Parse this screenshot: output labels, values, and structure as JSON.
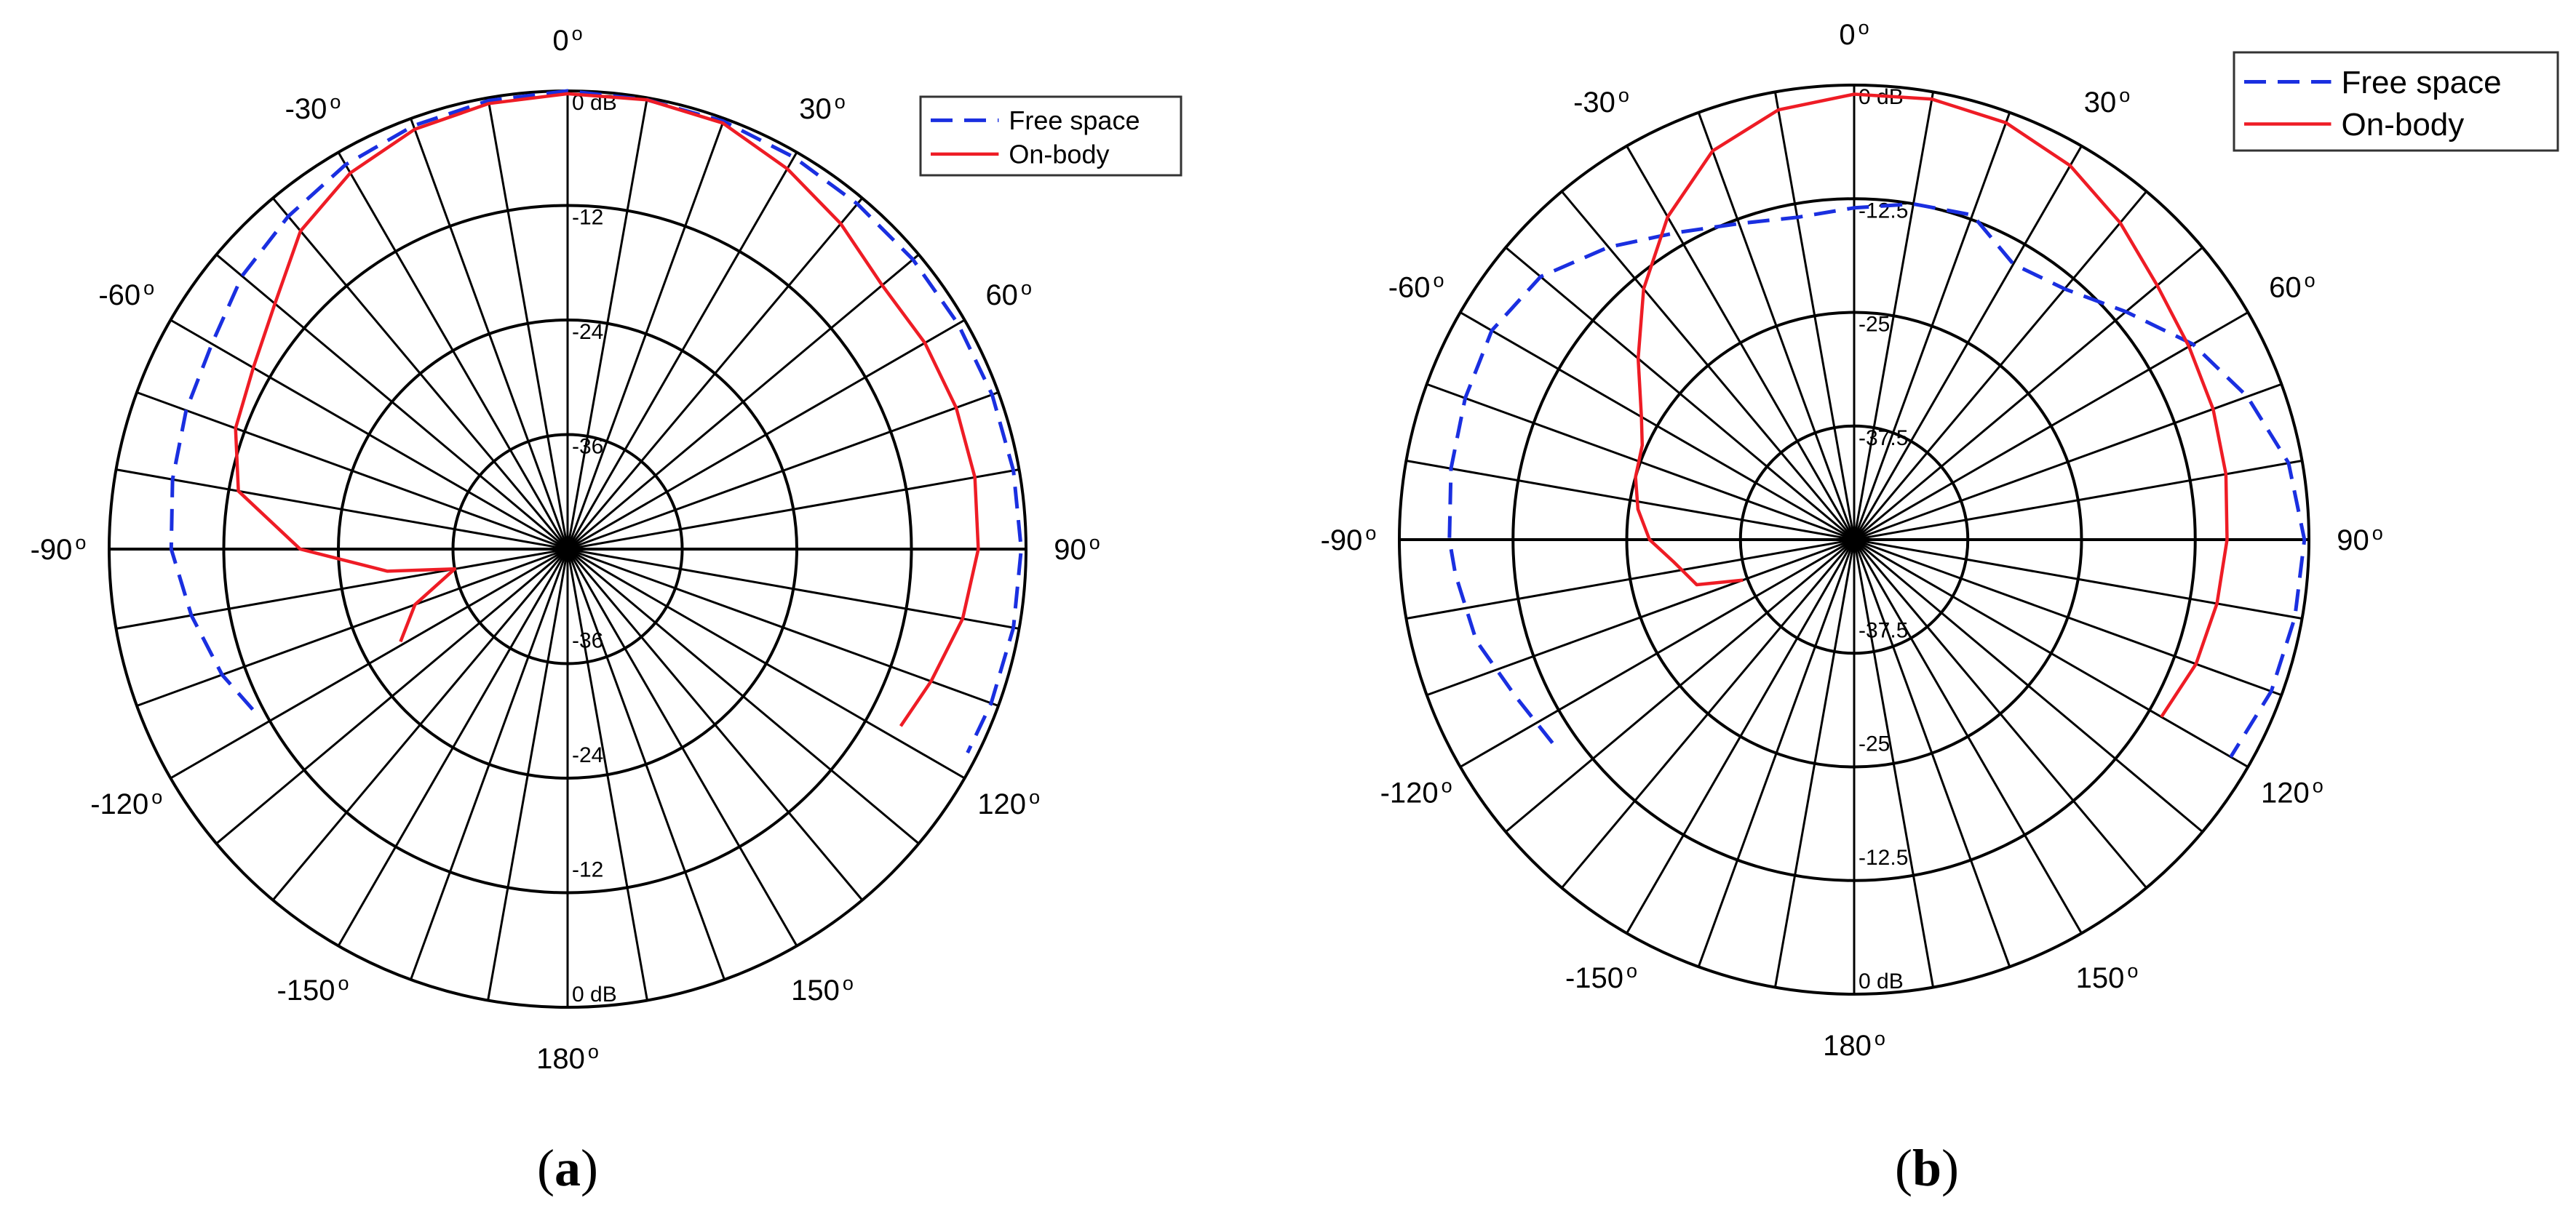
{
  "chart_data": [
    {
      "type": "polar-line",
      "panel_label": "a",
      "angle_labels": [
        {
          "angle": 0,
          "text": "0"
        },
        {
          "angle": 30,
          "text": "30"
        },
        {
          "angle": 60,
          "text": "60"
        },
        {
          "angle": 90,
          "text": "90"
        },
        {
          "angle": 120,
          "text": "120"
        },
        {
          "angle": 150,
          "text": "150"
        },
        {
          "angle": 180,
          "text": "180"
        },
        {
          "angle": -150,
          "text": "-150"
        },
        {
          "angle": -120,
          "text": "-120"
        },
        {
          "angle": -90,
          "text": "-90"
        },
        {
          "angle": -60,
          "text": "-60"
        },
        {
          "angle": -30,
          "text": "-30"
        }
      ],
      "degree_symbol": "o",
      "radial_unit": "dB",
      "rlim": [
        -48,
        0
      ],
      "rings": [
        -36,
        -24,
        -12,
        0
      ],
      "ring_labels_top": [
        "0 dB",
        "-12",
        "-24",
        "-36"
      ],
      "ring_labels_bottom": [
        "-36",
        "-24",
        "-12",
        "0 dB"
      ],
      "spoke_step_deg": 10,
      "legend": {
        "position": "top-right",
        "entries": [
          "Free space",
          "On-body"
        ]
      },
      "series": [
        {
          "name": "Free space",
          "color": "#1a2fe0",
          "dash": true,
          "points": [
            [
              -117,
              -11
            ],
            [
              -110,
              -9.5
            ],
            [
              -100,
              -8
            ],
            [
              -90,
              -6.5
            ],
            [
              -80,
              -6
            ],
            [
              -70,
              -5.5
            ],
            [
              -60,
              -5
            ],
            [
              -50,
              -3.5
            ],
            [
              -40,
              -2.5
            ],
            [
              -30,
              -1.5
            ],
            [
              -20,
              -0.8
            ],
            [
              -10,
              -0.3
            ],
            [
              0,
              0
            ],
            [
              10,
              -0.2
            ],
            [
              20,
              -0.3
            ],
            [
              30,
              -0.6
            ],
            [
              40,
              -0.8
            ],
            [
              50,
              -0.8
            ],
            [
              60,
              -0.8
            ],
            [
              70,
              -0.7
            ],
            [
              80,
              -0.6
            ],
            [
              90,
              -0.5
            ],
            [
              100,
              -0.6
            ],
            [
              110,
              -0.8
            ],
            [
              117,
              -1.0
            ]
          ]
        },
        {
          "name": "On-body",
          "color": "#ee1c25",
          "dash": false,
          "points": [
            [
              -119,
              -28
            ],
            [
              -110,
              -31
            ],
            [
              -100,
              -36
            ],
            [
              -97,
              -29
            ],
            [
              -90,
              -20
            ],
            [
              -80,
              -13
            ],
            [
              -70,
              -11
            ],
            [
              -60,
              -10
            ],
            [
              -50,
              -8
            ],
            [
              -40,
              -4.5
            ],
            [
              -30,
              -2.5
            ],
            [
              -20,
              -1.2
            ],
            [
              -10,
              -0.6
            ],
            [
              0,
              -0.3
            ],
            [
              10,
              -0.2
            ],
            [
              20,
              -0.5
            ],
            [
              30,
              -2.0
            ],
            [
              40,
              -3.5
            ],
            [
              50,
              -5.0
            ],
            [
              60,
              -4.8
            ],
            [
              70,
              -4.7
            ],
            [
              80,
              -4.7
            ],
            [
              90,
              -5.0
            ],
            [
              100,
              -6.0
            ],
            [
              110,
              -7.5
            ],
            [
              118,
              -8.5
            ]
          ]
        }
      ]
    },
    {
      "type": "polar-line",
      "panel_label": "b",
      "angle_labels": [
        {
          "angle": 0,
          "text": "0"
        },
        {
          "angle": 30,
          "text": "30"
        },
        {
          "angle": 60,
          "text": "60"
        },
        {
          "angle": 90,
          "text": "90"
        },
        {
          "angle": 120,
          "text": "120"
        },
        {
          "angle": 150,
          "text": "150"
        },
        {
          "angle": 180,
          "text": "180"
        },
        {
          "angle": -150,
          "text": "-150"
        },
        {
          "angle": -120,
          "text": "-120"
        },
        {
          "angle": -90,
          "text": "-90"
        },
        {
          "angle": -60,
          "text": "-60"
        },
        {
          "angle": -30,
          "text": "-30"
        }
      ],
      "degree_symbol": "o",
      "radial_unit": "dB",
      "rlim": [
        -50,
        0
      ],
      "rings": [
        -37.5,
        -25,
        -12.5,
        0
      ],
      "ring_labels_top": [
        "0 dB",
        "-12.5",
        "-25",
        "-37.5"
      ],
      "ring_labels_bottom": [
        "-37.5",
        "-25",
        "-12.5",
        "0 dB"
      ],
      "spoke_step_deg": 10,
      "legend": {
        "position": "top-right",
        "entries": [
          "Free space",
          "On-body"
        ]
      },
      "series": [
        {
          "name": "Free space",
          "color": "#1a2fe0",
          "dash": true,
          "points": [
            [
              -124,
              -10
            ],
            [
              -115,
              -9
            ],
            [
              -105,
              -7
            ],
            [
              -95,
              -6
            ],
            [
              -90,
              -5.5
            ],
            [
              -80,
              -5
            ],
            [
              -70,
              -4.5
            ],
            [
              -60,
              -4
            ],
            [
              -50,
              -5
            ],
            [
              -40,
              -8
            ],
            [
              -30,
              -11
            ],
            [
              -20,
              -13
            ],
            [
              -10,
              -14
            ],
            [
              0,
              -13.5
            ],
            [
              10,
              -12.5
            ],
            [
              20,
              -12
            ],
            [
              30,
              -15
            ],
            [
              40,
              -14
            ],
            [
              50,
              -11
            ],
            [
              60,
              -7
            ],
            [
              70,
              -4
            ],
            [
              80,
              -1.5
            ],
            [
              90,
              -0.5
            ],
            [
              100,
              -0.8
            ],
            [
              110,
              -1.2
            ],
            [
              120,
              -2.2
            ]
          ]
        },
        {
          "name": "On-body",
          "color": "#ee1c25",
          "dash": false,
          "points": [
            [
              -110,
              -37
            ],
            [
              -106,
              -32
            ],
            [
              -101,
              -31
            ],
            [
              -97,
              -30
            ],
            [
              -90,
              -27.5
            ],
            [
              -82,
              -26
            ],
            [
              -74,
              -25
            ],
            [
              -66,
              -24.5
            ],
            [
              -60,
              -23
            ],
            [
              -50,
              -19
            ],
            [
              -40,
              -14
            ],
            [
              -30,
              -9
            ],
            [
              -20,
              -4.5
            ],
            [
              -10,
              -2
            ],
            [
              0,
              -1
            ],
            [
              10,
              -0.8
            ],
            [
              20,
              -1.2
            ],
            [
              30,
              -2.5
            ],
            [
              40,
              -4.5
            ],
            [
              50,
              -6.5
            ],
            [
              60,
              -7.5
            ],
            [
              70,
              -8
            ],
            [
              80,
              -8.5
            ],
            [
              90,
              -9
            ],
            [
              100,
              -9.5
            ],
            [
              110,
              -10
            ],
            [
              120,
              -11
            ]
          ]
        }
      ]
    }
  ]
}
